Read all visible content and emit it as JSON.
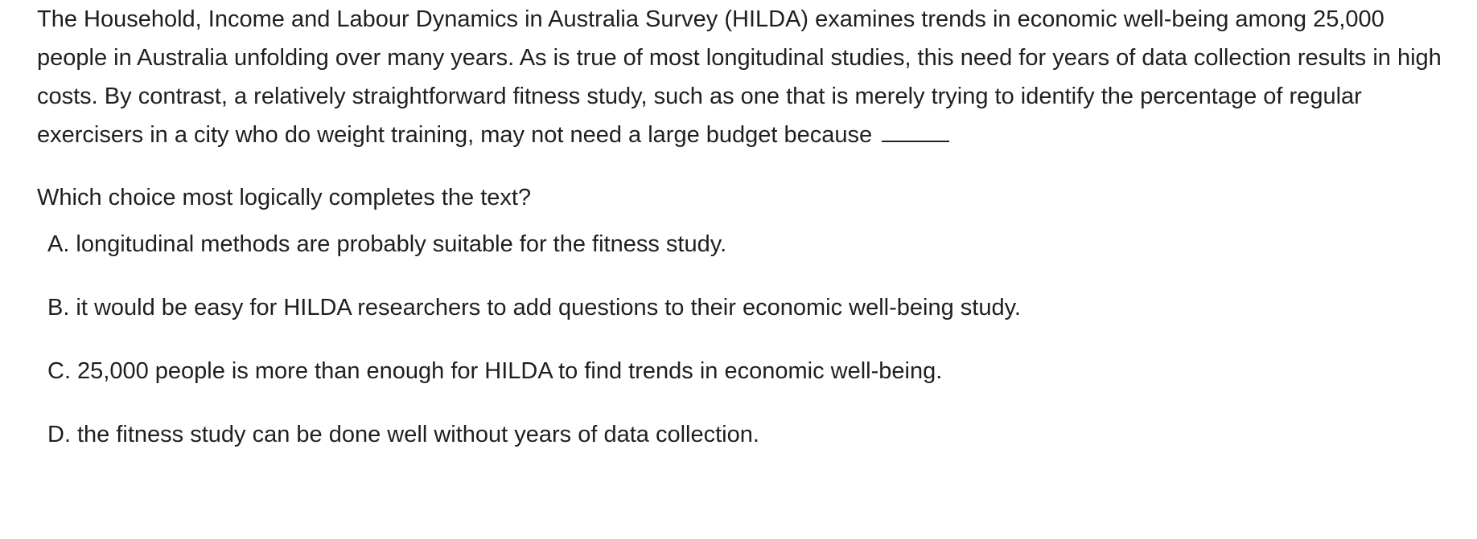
{
  "passage": {
    "text": "The Household, Income and Labour Dynamics in Australia Survey (HILDA) examines trends in economic well-being among 25,000 people in Australia unfolding over many years. As is true of most longitudinal studies, this need for years of data collection results in high costs. By contrast, a relatively straightforward fitness study, such as one that is merely trying to identify the percentage of regular exercisers in a city who do weight training, may not need a large budget because"
  },
  "question": {
    "prompt": "Which choice most logically completes the text?"
  },
  "choices": [
    {
      "letter": "A.",
      "text": "longitudinal methods are probably suitable for the fitness study."
    },
    {
      "letter": "B.",
      "text": "it would be easy for HILDA researchers to add questions to their economic well-being study."
    },
    {
      "letter": "C.",
      "text": "25,000 people is more than enough for HILDA to find trends in economic well-being."
    },
    {
      "letter": "D.",
      "text": "the fitness study can be done well without years of data collection."
    }
  ]
}
